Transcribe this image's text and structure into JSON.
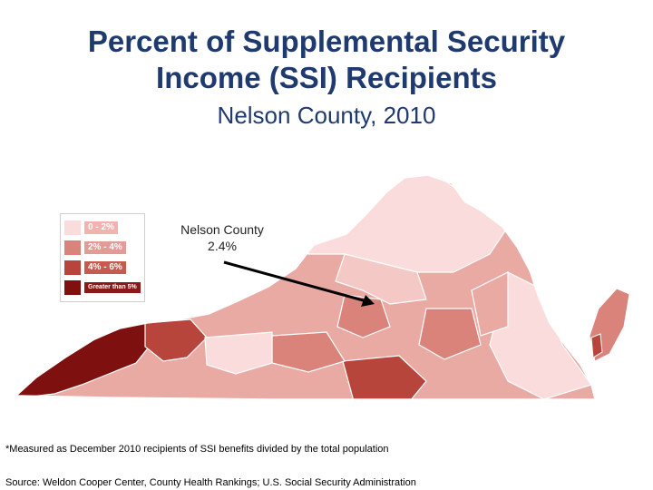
{
  "title": "Percent of Supplemental Security Income (SSI) Recipients",
  "subtitle": "Nelson County, 2010",
  "legend": {
    "items": [
      {
        "label": "0 - 2%",
        "color": "#f9dcdb",
        "label_bg": "#f1b3b0"
      },
      {
        "label": "2% - 4%",
        "color": "#d9837b",
        "label_bg": "#e39b95"
      },
      {
        "label": "4% - 6%",
        "color": "#b8453b",
        "label_bg": "#c55a51"
      },
      {
        "label": "Greater than 5%",
        "color": "#7e1010",
        "label_bg": "#8a1a1a"
      }
    ]
  },
  "callout": {
    "label_line1": "Nelson County",
    "label_line2": "2.4%"
  },
  "footnote": "*Measured as December 2010 recipients of SSI benefits divided by the total population",
  "source": "Source: Weldon Cooper Center, County Health Rankings; U.S. Social Security Administration",
  "colors": {
    "title": "#1f3a6e",
    "border": "#ffffff"
  }
}
